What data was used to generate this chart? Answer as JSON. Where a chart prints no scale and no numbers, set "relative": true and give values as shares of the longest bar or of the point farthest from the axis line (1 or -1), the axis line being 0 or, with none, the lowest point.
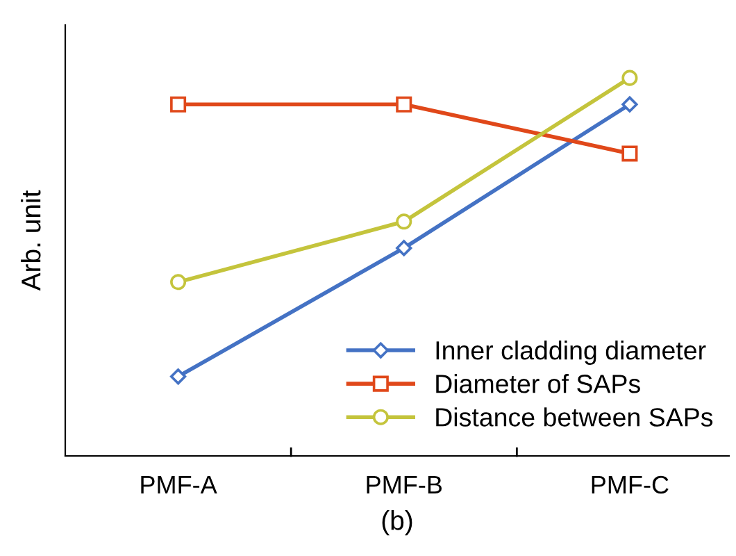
{
  "chart_data": {
    "type": "line",
    "relative": true,
    "xlabel": "(b)",
    "ylabel": "Arb. unit",
    "categories": [
      "PMF-A",
      "PMF-B",
      "PMF-C"
    ],
    "series": [
      {
        "name": "Inner cladding diameter",
        "color": "#4472c4",
        "marker": "diamond",
        "values": [
          0.21,
          0.55,
          0.93
        ]
      },
      {
        "name": "Diameter of SAPs",
        "color": "#e0481a",
        "marker": "square",
        "values": [
          0.93,
          0.93,
          0.8
        ]
      },
      {
        "name": "Distance between SAPs",
        "color": "#c4c43c",
        "marker": "circle",
        "values": [
          0.46,
          0.62,
          1.0
        ]
      }
    ],
    "legend": "bottom right",
    "grid": false,
    "line_style": "solid"
  }
}
